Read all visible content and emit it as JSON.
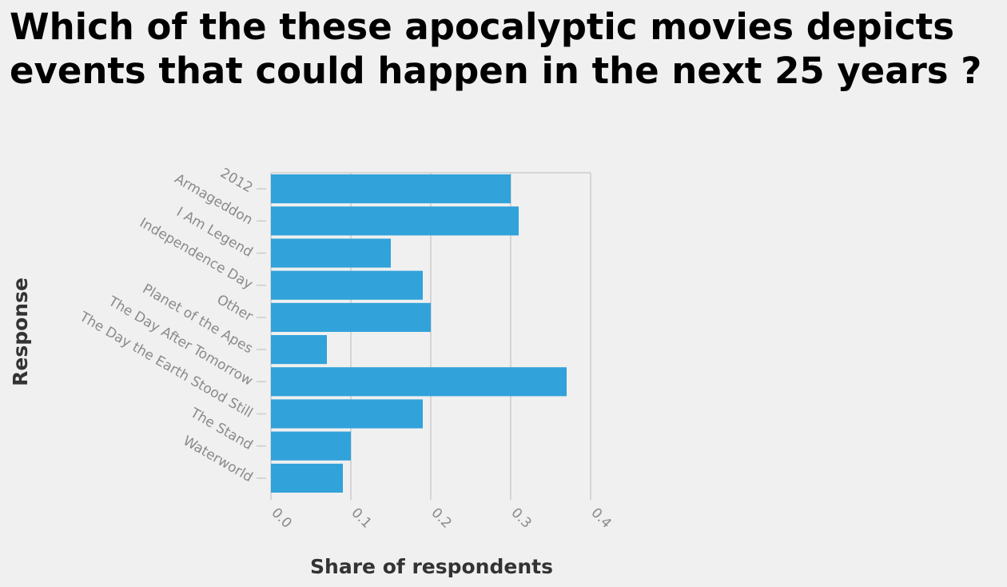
{
  "chart_data": {
    "type": "bar",
    "orientation": "horizontal",
    "title": "Which of the these apocalyptic movies depicts events that could happen in the next 25 years ?",
    "xlabel": "Share of respondents",
    "ylabel": "Response",
    "categories": [
      "2012",
      "Armageddon",
      "I Am Legend",
      "Independence Day",
      "Other",
      "Planet of the Apes",
      "The Day After Tomorrow",
      "The Day the Earth Stood Still",
      "The Stand",
      "Waterworld"
    ],
    "values": [
      0.3,
      0.31,
      0.15,
      0.19,
      0.2,
      0.07,
      0.37,
      0.19,
      0.1,
      0.09
    ],
    "xlim": [
      0,
      0.4
    ],
    "xticks": [
      "0.0",
      "0.1",
      "0.2",
      "0.3",
      "0.4"
    ],
    "grid": true,
    "bar_color": "#31a2da",
    "grid_color": "#cccccc",
    "tick_color": "#8a8a8a"
  }
}
